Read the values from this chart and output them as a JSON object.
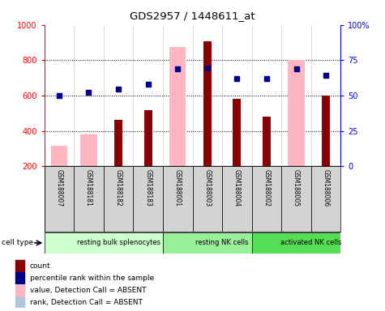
{
  "title": "GDS2957 / 1448611_at",
  "samples": [
    "GSM188007",
    "GSM188181",
    "GSM188182",
    "GSM188183",
    "GSM188001",
    "GSM188003",
    "GSM188004",
    "GSM188002",
    "GSM188005",
    "GSM188006"
  ],
  "cell_types": [
    {
      "label": "resting bulk splenocytes",
      "start": 0,
      "end": 4,
      "color": "#ccffcc"
    },
    {
      "label": "resting NK cells",
      "start": 4,
      "end": 7,
      "color": "#99ee99"
    },
    {
      "label": "activated NK cells",
      "start": 7,
      "end": 10,
      "color": "#55dd55"
    }
  ],
  "count": [
    null,
    null,
    465,
    520,
    null,
    905,
    580,
    480,
    null,
    600
  ],
  "rank_blue": [
    600,
    620,
    635,
    665,
    750,
    757,
    695,
    695,
    750,
    715
  ],
  "absent_value": [
    315,
    380,
    null,
    null,
    875,
    null,
    null,
    null,
    800,
    null
  ],
  "absent_rank": [
    600,
    null,
    null,
    null,
    null,
    null,
    null,
    null,
    null,
    null
  ],
  "ylim_left": [
    200,
    1000
  ],
  "ylim_right": [
    0,
    100
  ],
  "yticks_left": [
    200,
    400,
    600,
    800,
    1000
  ],
  "yticks_right": [
    0,
    25,
    50,
    75,
    100
  ],
  "count_color": "#8B0000",
  "absent_value_color": "#FFB6C1",
  "rank_dark_color": "#00008B",
  "rank_absent_color": "#B0C4DE",
  "grid_lines": [
    400,
    600,
    800
  ],
  "legend_labels": [
    "count",
    "percentile rank within the sample",
    "value, Detection Call = ABSENT",
    "rank, Detection Call = ABSENT"
  ],
  "legend_colors": [
    "#8B0000",
    "#00008B",
    "#FFB6C1",
    "#B0C4DE"
  ]
}
